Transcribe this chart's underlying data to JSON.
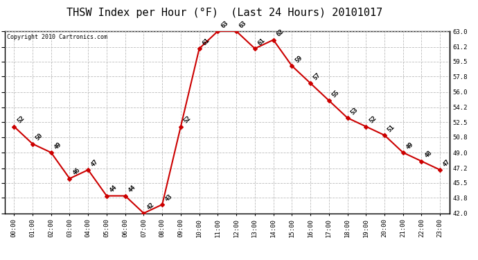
{
  "title": "THSW Index per Hour (°F)  (Last 24 Hours) 20101017",
  "copyright": "Copyright 2010 Cartronics.com",
  "hours": [
    "00:00",
    "01:00",
    "02:00",
    "03:00",
    "04:00",
    "05:00",
    "06:00",
    "07:00",
    "08:00",
    "09:00",
    "10:00",
    "11:00",
    "12:00",
    "13:00",
    "14:00",
    "15:00",
    "16:00",
    "17:00",
    "18:00",
    "19:00",
    "20:00",
    "21:00",
    "22:00",
    "23:00"
  ],
  "values": [
    52,
    50,
    49,
    46,
    47,
    44,
    44,
    42,
    43,
    52,
    61,
    63,
    63,
    61,
    62,
    59,
    57,
    55,
    53,
    52,
    51,
    49,
    48,
    47
  ],
  "ylim_min": 42.0,
  "ylim_max": 63.0,
  "yticks": [
    42.0,
    43.8,
    45.5,
    47.2,
    49.0,
    50.8,
    52.5,
    54.2,
    56.0,
    57.8,
    59.5,
    61.2,
    63.0
  ],
  "line_color": "#cc0000",
  "marker_color": "#cc0000",
  "bg_color": "#ffffff",
  "grid_color": "#bbbbbb",
  "title_fontsize": 11,
  "copyright_fontsize": 6,
  "label_fontsize": 6.5,
  "tick_fontsize": 6.5
}
